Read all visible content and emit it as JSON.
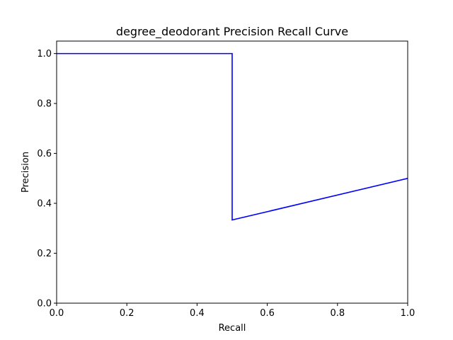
{
  "chart_data": {
    "type": "line",
    "title": "degree_deodorant Precision Recall Curve",
    "xlabel": "Recall",
    "ylabel": "Precision",
    "xlim": [
      0,
      1
    ],
    "ylim": [
      0,
      1.05
    ],
    "xticks": [
      "0.0",
      "0.2",
      "0.4",
      "0.6",
      "0.8",
      "1.0"
    ],
    "yticks": [
      "0.0",
      "0.2",
      "0.4",
      "0.6",
      "0.8",
      "1.0"
    ],
    "grid": false,
    "series": [
      {
        "color": "#0000ff",
        "points": [
          [
            0.0,
            1.0
          ],
          [
            0.5,
            1.0
          ],
          [
            0.5,
            0.3333
          ],
          [
            1.0,
            0.5
          ]
        ]
      }
    ]
  }
}
